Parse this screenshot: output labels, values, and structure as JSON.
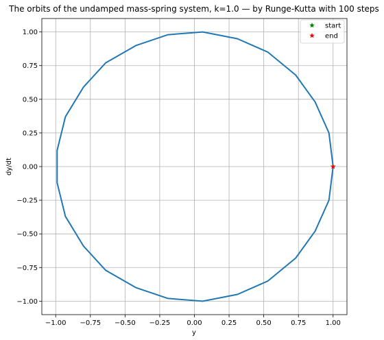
{
  "chart_data": {
    "type": "line",
    "title": "The orbits of the undamped mass-spring system, k=1.0 — by Runge-Kutta with 100 steps",
    "xlabel": "y",
    "ylabel": "dy/dt",
    "xlim": [
      -1.1,
      1.1
    ],
    "ylim": [
      -1.1,
      1.1
    ],
    "xticks": [
      -1.0,
      -0.75,
      -0.5,
      -0.25,
      0.0,
      0.25,
      0.5,
      0.75,
      1.0
    ],
    "xtick_labels": [
      "−1.00",
      "−0.75",
      "−0.50",
      "−0.25",
      "0.00",
      "0.25",
      "0.50",
      "0.75",
      "1.00"
    ],
    "yticks": [
      -1.0,
      -0.75,
      -0.5,
      -0.25,
      0.0,
      0.25,
      0.5,
      0.75,
      1.0
    ],
    "ytick_labels": [
      "−1.00",
      "−0.75",
      "−0.50",
      "−0.25",
      "0.00",
      "0.25",
      "0.50",
      "0.75",
      "1.00"
    ],
    "grid": true,
    "legend_position": "top-right",
    "series": [
      {
        "color": "#1f77b4",
        "x": [
          1.0,
          0.97,
          0.87,
          0.73,
          0.53,
          0.31,
          0.06,
          -0.19,
          -0.42,
          -0.64,
          -0.8,
          -0.93,
          -0.99,
          -0.99,
          -0.93,
          -0.8,
          -0.64,
          -0.42,
          -0.19,
          0.06,
          0.31,
          0.53,
          0.73,
          0.87,
          0.97,
          1.0
        ],
        "y": [
          0.0,
          0.25,
          0.48,
          0.68,
          0.85,
          0.95,
          1.0,
          0.98,
          0.9,
          0.77,
          0.59,
          0.37,
          0.12,
          -0.12,
          -0.37,
          -0.59,
          -0.77,
          -0.9,
          -0.98,
          -1.0,
          -0.95,
          -0.85,
          -0.68,
          -0.48,
          -0.25,
          0.0
        ]
      }
    ],
    "markers": [
      {
        "label": "start",
        "x": 1.0,
        "y": 0.0,
        "color": "#008000"
      },
      {
        "label": "end",
        "x": 1.0,
        "y": 0.0,
        "color": "#ff0000"
      }
    ]
  }
}
